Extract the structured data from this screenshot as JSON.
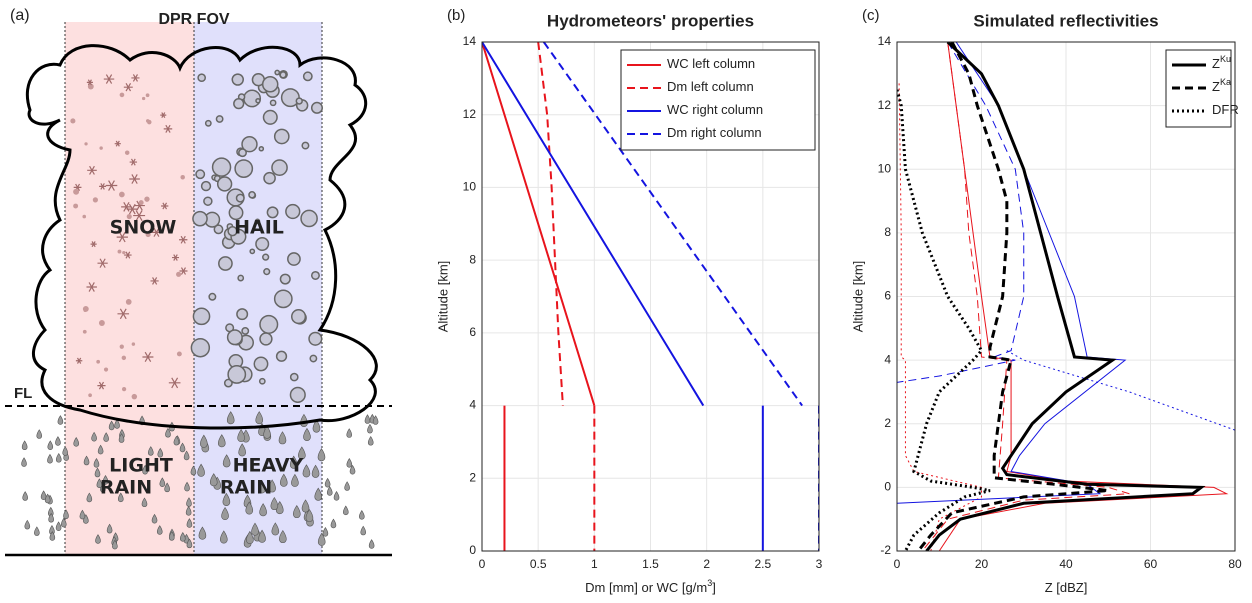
{
  "diagram": {
    "label": "(a)",
    "title": "DPR FOV",
    "snow": "SNOW",
    "hail": "HAIL",
    "light": "LIGHT",
    "light_rain": "RAIN",
    "heavy": "HEAVY",
    "heavy_rain": "RAIN",
    "fl": "FL"
  },
  "chart_data": [
    {
      "type": "line",
      "panel_label": "(b)",
      "title": "Hydrometeors' properties",
      "xlabel": "Dm [mm] or WC [g/m",
      "xlabel_sup": "3",
      "xlabel_end": "]",
      "ylabel": "Altitude [km]",
      "xlim": [
        0,
        3
      ],
      "ylim": [
        0,
        14
      ],
      "xticks": [
        0,
        0.5,
        1,
        1.5,
        2,
        2.5,
        3
      ],
      "yticks": [
        0,
        2,
        4,
        6,
        8,
        10,
        12,
        14
      ],
      "grid": true,
      "legend": "upper right",
      "series": [
        {
          "name": "WC left column",
          "color": "#e8141c",
          "dash": "solid",
          "width": 2,
          "x": [
            0,
            1,
            null,
            0.2,
            0.2
          ],
          "y": [
            14,
            4,
            null,
            4,
            0
          ]
        },
        {
          "name": "Dm left column",
          "color": "#e8141c",
          "dash": "dashed",
          "width": 2,
          "x": [
            0.5,
            0.58,
            0.62,
            0.65,
            0.68,
            0.72,
            null,
            1,
            1
          ],
          "y": [
            14,
            12,
            10,
            8,
            6,
            4,
            null,
            4,
            0
          ]
        },
        {
          "name": "WC right column",
          "color": "#1414e0",
          "dash": "solid",
          "width": 2,
          "x": [
            0,
            1.97,
            null,
            2.5,
            2.5
          ],
          "y": [
            14,
            4,
            null,
            4,
            0
          ]
        },
        {
          "name": "Dm right column",
          "color": "#1414e0",
          "dash": "dashed",
          "width": 2,
          "x": [
            0.55,
            2.85,
            null,
            3,
            3
          ],
          "y": [
            14,
            4,
            null,
            4,
            0
          ]
        }
      ]
    },
    {
      "type": "line",
      "panel_label": "(c)",
      "title": "Simulated reflectivities",
      "xlabel": "Z [dBZ]",
      "ylabel": "Altitude [km]",
      "xlim": [
        0,
        80
      ],
      "ylim": [
        -2,
        14
      ],
      "xticks": [
        0,
        20,
        40,
        60,
        80
      ],
      "yticks": [
        -2,
        0,
        2,
        4,
        6,
        8,
        10,
        12,
        14
      ],
      "grid": true,
      "legend": "upper right",
      "series": [
        {
          "color": "#e8141c",
          "dash": "solid",
          "width": 1,
          "x": [
            12,
            14,
            16,
            18,
            20,
            22,
            27,
            27,
            27,
            26,
            40,
            75,
            78,
            35,
            15,
            10
          ],
          "y": [
            14,
            12,
            10,
            8,
            6,
            4.1,
            4,
            2,
            1,
            0.5,
            0.2,
            0,
            -0.2,
            -0.5,
            -1,
            -2
          ]
        },
        {
          "color": "#e8141c",
          "dash": "dashed",
          "width": 1,
          "x": [
            12,
            14,
            16,
            17,
            19,
            20,
            26,
            25,
            24,
            50,
            55,
            30,
            12,
            6
          ],
          "y": [
            14,
            12,
            10,
            8,
            6,
            4.1,
            4,
            2,
            0.3,
            0,
            -0.2,
            -0.4,
            -1,
            -2
          ]
        },
        {
          "color": "#e8141c",
          "dash": "dotted",
          "width": 1,
          "x": [
            0.5,
            1,
            1,
            2,
            2,
            4,
            20,
            20,
            10,
            8
          ],
          "y": [
            12.7,
            8,
            4.1,
            4,
            1,
            0.5,
            0,
            -0.3,
            -1,
            -2
          ]
        },
        {
          "color": "#1414e0",
          "dash": "solid",
          "width": 1,
          "x": [
            14,
            24,
            30,
            36,
            42,
            45,
            54,
            35,
            29,
            27,
            45,
            48,
            0
          ],
          "y": [
            14,
            12,
            10,
            8,
            6,
            4.1,
            4,
            2,
            1,
            0.5,
            0.1,
            -0.2,
            -0.5
          ]
        },
        {
          "color": "#1414e0",
          "dash": "dashed",
          "width": 1,
          "x": [
            12,
            21,
            28,
            30,
            30,
            27,
            23,
            28,
            10,
            0
          ],
          "y": [
            14,
            12,
            10,
            8,
            6,
            4.3,
            4.1,
            4,
            3.5,
            3.3
          ]
        },
        {
          "color": "#1414e0",
          "dash": "dotted",
          "width": 1,
          "x": [
            26,
            30,
            55,
            80
          ],
          "y": [
            4.3,
            4,
            3,
            1.8
          ]
        },
        {
          "name": "Z",
          "name_sup": "Ku",
          "color": "#000000",
          "dash": "solid",
          "width": 3,
          "x": [
            12,
            20,
            24,
            30,
            34,
            38,
            42,
            51,
            40,
            32,
            27,
            25,
            26,
            45,
            72,
            70,
            30,
            15,
            10,
            7
          ],
          "y": [
            14,
            13,
            12,
            10,
            8,
            6,
            4.1,
            4,
            3,
            2,
            1,
            0.6,
            0.4,
            0.1,
            0,
            -0.2,
            -0.5,
            -1,
            -1.5,
            -2
          ]
        },
        {
          "name": "Z",
          "name_sup": "Ka",
          "color": "#000000",
          "dash": "dashed",
          "width": 3,
          "x": [
            13,
            17,
            19,
            24,
            26,
            26,
            25,
            22,
            22,
            27,
            25,
            24,
            23,
            23,
            37,
            50,
            30,
            13,
            8,
            5
          ],
          "y": [
            14,
            13,
            12,
            10,
            9,
            8,
            6,
            4.4,
            4.1,
            4,
            3,
            2,
            1,
            0.3,
            0.1,
            -0.1,
            -0.3,
            -0.8,
            -1.5,
            -2
          ]
        },
        {
          "name": "DFR",
          "color": "#000000",
          "dash": "dotted",
          "width": 3,
          "x": [
            0,
            1,
            2,
            6,
            12,
            17,
            20,
            18,
            14,
            10,
            7,
            5,
            4,
            8,
            18,
            22,
            16,
            10,
            4,
            2
          ],
          "y": [
            12.5,
            12,
            10,
            8,
            6,
            5,
            4.3,
            4,
            3.5,
            3,
            2,
            1,
            0.5,
            0.2,
            0,
            -0.1,
            -0.3,
            -0.8,
            -1.5,
            -2
          ]
        }
      ]
    }
  ]
}
